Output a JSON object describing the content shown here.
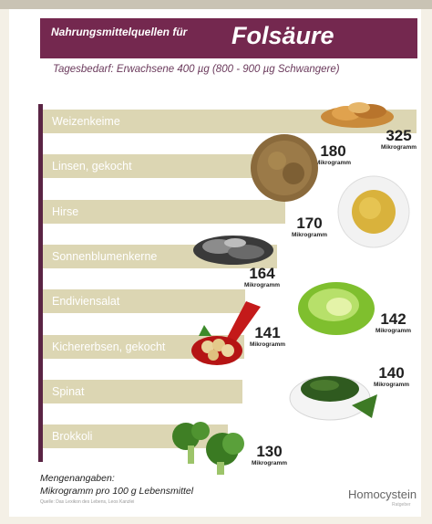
{
  "header": {
    "subtitle": "Nahrungsmittelquellen für",
    "title": "Folsäure"
  },
  "daily_need": "Tagesbedarf: Erwachsene 400 µg (800 - 900 µg Schwangere)",
  "chart_data": {
    "type": "bar",
    "orientation": "horizontal",
    "categories": [
      "Weizenkeime",
      "Linsen, gekocht",
      "Hirse",
      "Sonnenblumenkerne",
      "Endiviensalat",
      "Kichererbsen, gekocht",
      "Spinat",
      "Brokkoli"
    ],
    "values": [
      325,
      180,
      170,
      164,
      142,
      141,
      140,
      130
    ],
    "unit_label": "Mikrogramm",
    "colors": {
      "bar": "#dcd6b3",
      "axis": "#5a2444",
      "header": "#74284f"
    }
  },
  "footer": {
    "line1": "Mengenangaben:",
    "line2": "Mikrogramm pro 100 g Lebensmittel",
    "source": "Quelle: Das Lexikon des Lebens, Leos Kanzlei"
  },
  "logo": {
    "text": "Homocystein",
    "sub": "Ratgeber"
  },
  "illustrations": [
    "wheat-germ-icon",
    "lentils-icon",
    "millet-bowl-icon",
    "sunflower-seeds-icon",
    "endive-salad-icon",
    "chickpeas-spoon-icon",
    "spinach-bowl-icon",
    "broccoli-icon"
  ]
}
